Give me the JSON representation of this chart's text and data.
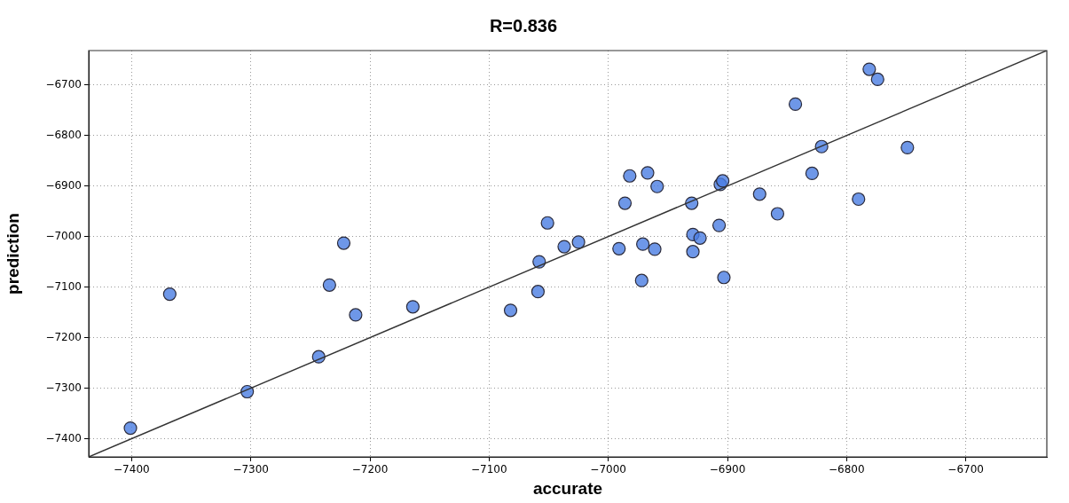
{
  "chart_data": {
    "type": "scatter",
    "title": "R=0.836",
    "xlabel": "accurate",
    "ylabel": "prediction",
    "xlim": [
      -7436,
      -6632
    ],
    "ylim": [
      -7436,
      -6632
    ],
    "xticks": [
      -7400,
      -7300,
      -7200,
      -7100,
      -7000,
      -6900,
      -6800,
      -6700
    ],
    "yticks": [
      -7400,
      -7300,
      -7200,
      -7100,
      -7000,
      -6900,
      -6800,
      -6700
    ],
    "grid": true,
    "legend": false,
    "series": [
      {
        "marker": "circle",
        "color": "#4a7de2",
        "x": [
          -7401,
          -7368,
          -7303,
          -7243,
          -7234,
          -7222,
          -7212,
          -7164,
          -7082,
          -7059,
          -7058,
          -7051,
          -7037,
          -7025,
          -6991,
          -6986,
          -6982,
          -6972,
          -6971,
          -6967,
          -6961,
          -6959,
          -6930,
          -6929,
          -6929,
          -6923,
          -6907,
          -6906,
          -6904,
          -6903,
          -6873,
          -6858,
          -6843,
          -6829,
          -6821,
          -6790,
          -6781,
          -6774,
          -6749
        ],
        "values": [
          -7379,
          -7114,
          -7307,
          -7238,
          -7096,
          -7013,
          -7155,
          -7139,
          -7146,
          -7109,
          -7050,
          -6973,
          -7020,
          -7011,
          -7024,
          -6934,
          -6880,
          -7087,
          -7015,
          -6874,
          -7025,
          -6901,
          -6934,
          -6996,
          -7030,
          -7003,
          -6978,
          -6897,
          -6890,
          -7081,
          -6916,
          -6955,
          -6738,
          -6875,
          -6822,
          -6926,
          -6669,
          -6689,
          -6824
        ]
      },
      {
        "type": "line",
        "color": "#333333",
        "x": [
          -7436,
          -6632
        ],
        "values": [
          -7436,
          -6632
        ]
      }
    ]
  }
}
